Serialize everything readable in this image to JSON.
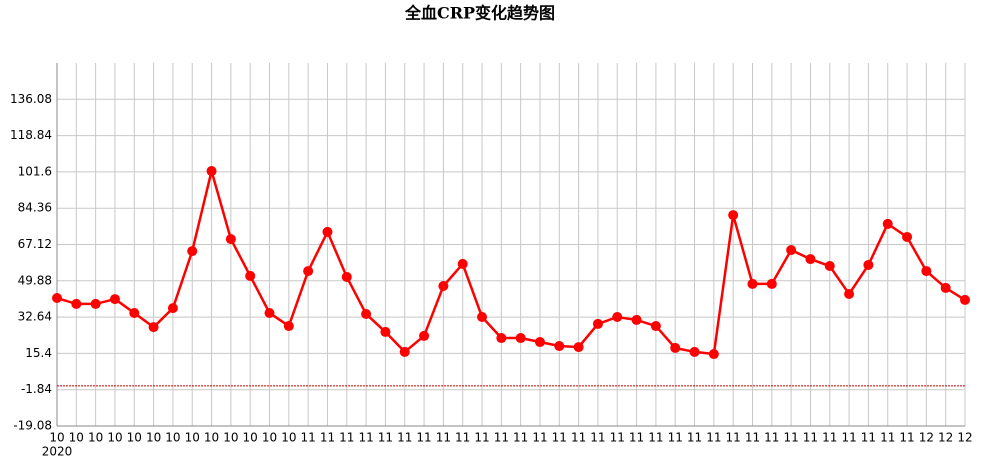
{
  "chart_data": {
    "type": "line",
    "title": "全血CRP变化趋势图",
    "categories": [
      "10",
      "10",
      "10",
      "10",
      "10",
      "10",
      "10",
      "10",
      "10",
      "10",
      "10",
      "10",
      "10",
      "11",
      "11",
      "11",
      "11",
      "11",
      "11",
      "11",
      "11",
      "11",
      "11",
      "11",
      "11",
      "11",
      "11",
      "11",
      "11",
      "11",
      "11",
      "11",
      "11",
      "11",
      "11",
      "11",
      "11",
      "11",
      "11",
      "11",
      "11",
      "11",
      "11",
      "11",
      "11",
      "12",
      "12",
      "12"
    ],
    "x_sublabel": "2020",
    "series": [
      {
        "name": "全血CRP",
        "color": "#ff0000",
        "values": [
          41.7,
          38.9,
          38.9,
          41.2,
          34.6,
          27.9,
          36.9,
          64.0,
          102.0,
          69.7,
          52.2,
          34.6,
          28.4,
          54.5,
          73.1,
          51.7,
          34.1,
          25.6,
          16.1,
          23.7,
          47.4,
          57.9,
          32.7,
          22.7,
          22.7,
          20.8,
          18.9,
          18.4,
          29.4,
          32.7,
          31.3,
          28.4,
          18.0,
          16.1,
          15.1,
          81.1,
          48.4,
          48.4,
          64.5,
          60.2,
          56.9,
          43.6,
          57.4,
          76.9,
          70.7,
          54.5,
          46.5,
          40.8
        ]
      }
    ],
    "ylim": [
      -19.08,
      153.32
    ],
    "yticks": [
      -19.08,
      -1.84,
      15.4,
      32.64,
      49.88,
      67.12,
      84.36,
      101.6,
      118.84,
      136.08
    ],
    "reference_line": {
      "value": 0,
      "color": "#c00000"
    },
    "grid": true
  }
}
